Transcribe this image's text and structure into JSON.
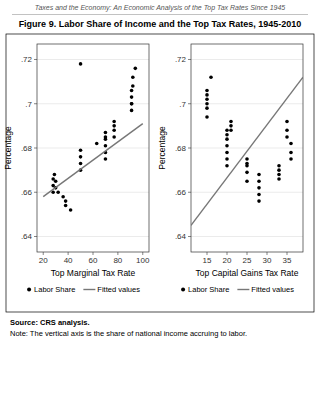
{
  "title": "Figure 9. Labor Share of Income and the Top Tax Rates, 1945-2010",
  "subtitle": "Taxes and the Economy: An Economic Analysis of the Top Tax Rates Since 1945",
  "annotations": [
    "Source: CRS analysis.",
    "Note: The vertical axis is the share of national income accruing to labor."
  ],
  "chart_data": [
    {
      "type": "scatter",
      "x_label": "Top Marginal Tax Rate",
      "y_label": "Percentage",
      "xlim": [
        15,
        105
      ],
      "ylim": [
        0.633,
        0.727
      ],
      "xticks": [
        20,
        40,
        60,
        80,
        100
      ],
      "yticks": [
        {
          "value": 0.64,
          "label": ".64"
        },
        {
          "value": 0.66,
          "label": ".66"
        },
        {
          "value": 0.68,
          "label": ".68"
        },
        {
          "value": 0.7,
          "label": ".7"
        },
        {
          "value": 0.72,
          "label": ".72"
        }
      ],
      "grid": true,
      "legend": "bottom",
      "series": [
        {
          "name": "Labor Share",
          "type": "scatter",
          "color": "#000000",
          "marker": "circle",
          "x": [
            28,
            28,
            28,
            29,
            30,
            30,
            32,
            38,
            38,
            42,
            50,
            50,
            50,
            50,
            63,
            70,
            70,
            70,
            70,
            70,
            70,
            77,
            77,
            77,
            77,
            91,
            91,
            91,
            91,
            91,
            92,
            92,
            94,
            50,
            36
          ],
          "values": [
            0.66,
            0.663,
            0.666,
            0.668,
            0.665,
            0.662,
            0.66,
            0.656,
            0.654,
            0.652,
            0.67,
            0.673,
            0.676,
            0.679,
            0.682,
            0.685,
            0.687,
            0.684,
            0.681,
            0.678,
            0.675,
            0.69,
            0.692,
            0.688,
            0.685,
            0.7,
            0.706,
            0.703,
            0.7,
            0.697,
            0.708,
            0.712,
            0.716,
            0.718,
            0.658
          ]
        },
        {
          "name": "Fitted values",
          "type": "line",
          "color": "#777777",
          "line_style": "solid",
          "x": [
            20,
            100
          ],
          "values": [
            0.658,
            0.691
          ]
        }
      ]
    },
    {
      "type": "scatter",
      "x_label": "Top Capital Gains Tax Rate",
      "y_label": "Percentage",
      "xlim": [
        11,
        39
      ],
      "ylim": [
        0.633,
        0.727
      ],
      "xticks": [
        15,
        20,
        25,
        30,
        35
      ],
      "yticks": [
        {
          "value": 0.64,
          "label": ".64"
        },
        {
          "value": 0.66,
          "label": ".66"
        },
        {
          "value": 0.68,
          "label": ".68"
        },
        {
          "value": 0.7,
          "label": ".7"
        },
        {
          "value": 0.72,
          "label": ".72"
        }
      ],
      "grid": true,
      "legend": "bottom",
      "series": [
        {
          "name": "Labor Share",
          "type": "scatter",
          "color": "#000000",
          "marker": "circle",
          "x": [
            15,
            15,
            15,
            15,
            15,
            15,
            16,
            20,
            20,
            20,
            20,
            20,
            20,
            20,
            21,
            21,
            21,
            25,
            25,
            25,
            25,
            25,
            28,
            28,
            28,
            28,
            28,
            33,
            33,
            33,
            33,
            35,
            35,
            35,
            36,
            36,
            36
          ],
          "values": [
            0.7,
            0.706,
            0.704,
            0.702,
            0.698,
            0.694,
            0.712,
            0.688,
            0.686,
            0.684,
            0.681,
            0.678,
            0.675,
            0.672,
            0.69,
            0.692,
            0.688,
            0.672,
            0.675,
            0.673,
            0.669,
            0.665,
            0.668,
            0.665,
            0.662,
            0.659,
            0.656,
            0.668,
            0.672,
            0.67,
            0.666,
            0.692,
            0.688,
            0.685,
            0.682,
            0.678,
            0.675
          ]
        },
        {
          "name": "Fitted values",
          "type": "line",
          "color": "#777777",
          "line_style": "solid",
          "x": [
            11,
            39
          ],
          "values": [
            0.645,
            0.712
          ]
        }
      ]
    }
  ]
}
